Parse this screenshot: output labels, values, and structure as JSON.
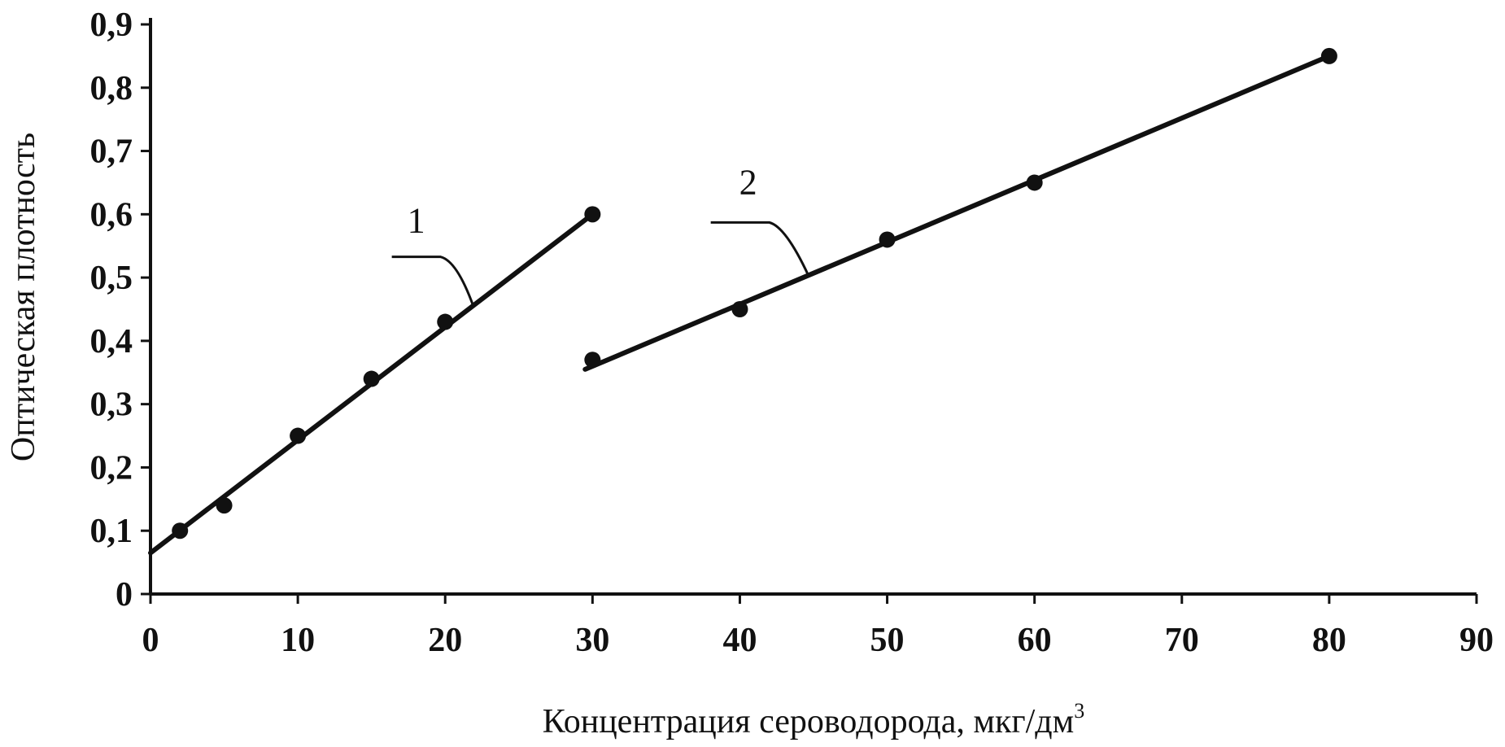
{
  "chart_data": {
    "type": "line",
    "title": "",
    "xlabel": "Концентрация сероводорода, мкг/дм",
    "xlabel_superscript": "3",
    "ylabel": "Оптическая плотность",
    "xlim": [
      0,
      90
    ],
    "ylim": [
      0,
      0.9
    ],
    "x_ticks": [
      "0",
      "10",
      "20",
      "30",
      "40",
      "50",
      "60",
      "70",
      "80",
      "90"
    ],
    "y_ticks": [
      "0",
      "0,1",
      "0,2",
      "0,3",
      "0,4",
      "0,5",
      "0,6",
      "0,7",
      "0,8",
      "0,9"
    ],
    "grid": false,
    "legend": "none",
    "series": [
      {
        "label": "1",
        "points": [
          {
            "x": 2,
            "y": 0.1
          },
          {
            "x": 5,
            "y": 0.14
          },
          {
            "x": 10,
            "y": 0.25
          },
          {
            "x": 15,
            "y": 0.34
          },
          {
            "x": 20,
            "y": 0.43
          },
          {
            "x": 30,
            "y": 0.6
          }
        ],
        "trendline": {
          "x": [
            0,
            30
          ],
          "y": [
            0.065,
            0.6
          ]
        }
      },
      {
        "label": "2",
        "points": [
          {
            "x": 30,
            "y": 0.37
          },
          {
            "x": 40,
            "y": 0.45
          },
          {
            "x": 50,
            "y": 0.56
          },
          {
            "x": 60,
            "y": 0.65
          },
          {
            "x": 80,
            "y": 0.85
          }
        ],
        "trendline": {
          "x": [
            29.5,
            80
          ],
          "y": [
            0.355,
            0.85
          ]
        }
      }
    ],
    "colors": {
      "ink": "#111111",
      "background": "#ffffff"
    }
  }
}
